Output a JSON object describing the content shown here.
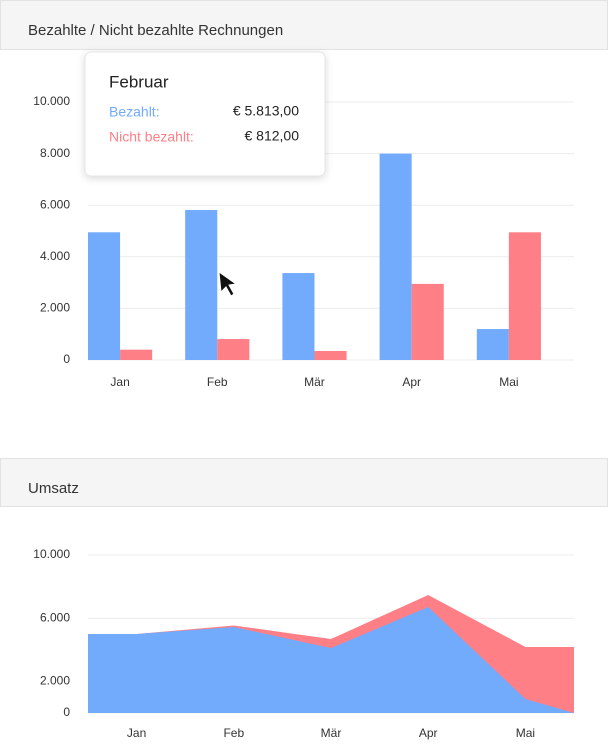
{
  "charts": [
    {
      "chart_data": {
        "type": "bar",
        "title": "Bezahlte / Nicht bezahlte Rechnungen",
        "categories": [
          "Jan",
          "Feb",
          "Mär",
          "Apr",
          "Mai"
        ],
        "series": [
          {
            "color": "#72aafc",
            "values": [
              4950,
              5813,
              3370,
              8000,
              1200
            ]
          },
          {
            "color": "#ff7f86",
            "values": [
              400,
              812,
              350,
              2950,
              4950
            ]
          }
        ],
        "ylim": [
          0,
          10000
        ],
        "yticks": [
          0,
          {
            "value": 2000,
            "label": "2.000"
          },
          {
            "value": 4000,
            "label": "4.000"
          },
          {
            "value": 6000,
            "label": "6.000"
          },
          {
            "value": 8000,
            "label": "8.000"
          },
          {
            "value": 10000,
            "label": "10.000"
          }
        ],
        "grid": true
      }
    },
    {
      "chart_data": {
        "type": "area",
        "title": "Umsatz",
        "categories": [
          "Jan",
          "Feb",
          "Mär",
          "Apr",
          "Mai"
        ],
        "series": [
          {
            "color": "#ff7f86",
            "values": [
              5000,
              5540,
              4680,
              7470,
              4180
            ]
          },
          {
            "color": "#72aafc",
            "values": [
              5000,
              5440,
              4110,
              6710,
              890
            ]
          }
        ],
        "ylim": [
          0,
          10000
        ],
        "yticks": [
          0,
          {
            "value": 2000,
            "label": "2.000"
          },
          {
            "value": 6000,
            "label": "6.000"
          },
          {
            "value": 10000,
            "label": "10.000"
          }
        ],
        "grid": true
      }
    }
  ],
  "tooltip": {
    "title": "Februar",
    "rows": [
      {
        "label": "Bezahlt:",
        "value": "€ 5.813,00"
      },
      {
        "label": "Nicht bezahlt:",
        "value": "€ 812,00"
      }
    ]
  }
}
